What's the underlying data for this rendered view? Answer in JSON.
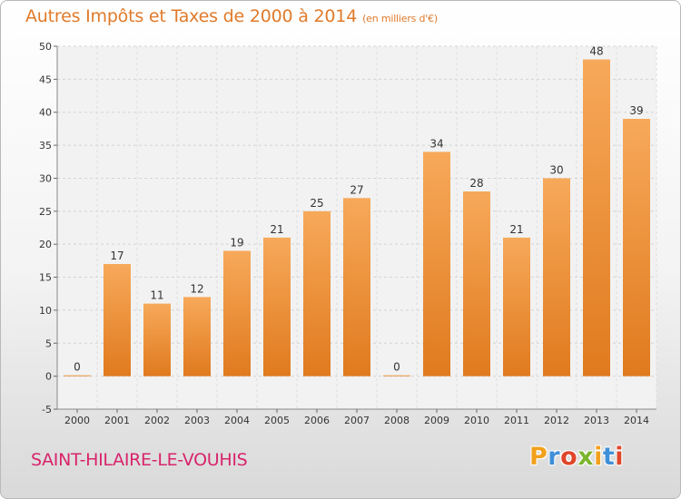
{
  "header": {
    "title": "Autres Impôts et Taxes de 2000 à 2014",
    "unit": "(en milliers d'€)"
  },
  "footer": {
    "city": "SAINT-HILAIRE-LE-VOUHIS",
    "logo_letters": [
      "P",
      "r",
      "o",
      "x",
      "i",
      "t",
      "i"
    ],
    "logo_colors": [
      "#f2a01c",
      "#3f8fd8",
      "#e0462a",
      "#7cb52e",
      "#f2a01c",
      "#3f8fd8",
      "#e0462a"
    ]
  },
  "colors": {
    "bar_light": "#f7a95a",
    "bar_dark": "#e07a1e",
    "title": "#e07a2a",
    "city": "#d8246b"
  },
  "chart_data": {
    "type": "bar",
    "title": "Autres Impôts et Taxes de 2000 à 2014",
    "subtitle": "(en milliers d'€)",
    "categories": [
      "2000",
      "2001",
      "2002",
      "2003",
      "2004",
      "2005",
      "2006",
      "2007",
      "2008",
      "2009",
      "2010",
      "2011",
      "2012",
      "2013",
      "2014"
    ],
    "values": [
      0,
      17,
      11,
      12,
      19,
      21,
      25,
      27,
      0,
      34,
      28,
      21,
      30,
      48,
      39
    ],
    "ylim": [
      -5,
      50
    ],
    "yticks": [
      -5,
      0,
      5,
      10,
      15,
      20,
      25,
      30,
      35,
      40,
      45,
      50
    ],
    "grid": true
  }
}
